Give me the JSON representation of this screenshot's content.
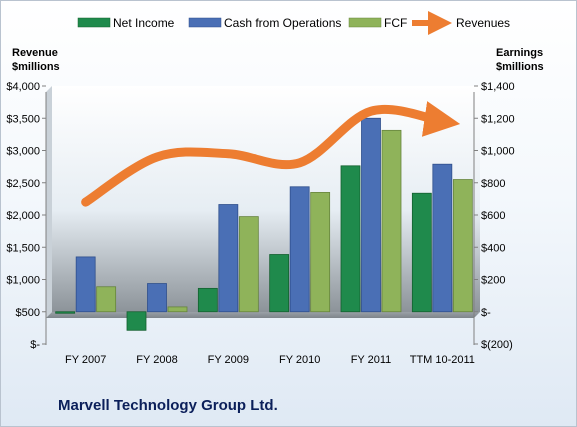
{
  "company_name": "Marvell Technology Group Ltd.",
  "chart_data": {
    "type": "bar",
    "categories": [
      "FY 2007",
      "FY 2008",
      "FY 2009",
      "FY 2010",
      "FY 2011",
      "TTM 10-2011"
    ],
    "series": [
      {
        "name": "Net Income",
        "axis": "right",
        "color": "#1f8a4c",
        "values": [
          -5,
          -115,
          145,
          355,
          905,
          735
        ]
      },
      {
        "name": "Cash from Operations",
        "axis": "right",
        "color": "#4a6fb5",
        "values": [
          340,
          175,
          665,
          775,
          1200,
          915
        ]
      },
      {
        "name": "FCF",
        "axis": "right",
        "color": "#8fb35a",
        "values": [
          155,
          30,
          590,
          740,
          1125,
          820
        ]
      },
      {
        "name": "Revenues",
        "axis": "left",
        "type": "line",
        "color": "#ed7d31",
        "values": [
          2200,
          2900,
          2950,
          2810,
          3610,
          3450
        ]
      }
    ],
    "left_axis": {
      "label_line1": "Revenue",
      "label_line2": "$millions",
      "ylim": [
        0,
        4000
      ],
      "ticks": [
        0,
        500,
        1000,
        1500,
        2000,
        2500,
        3000,
        3500,
        4000
      ],
      "tick_labels": [
        "$-",
        "$500",
        "$1,000",
        "$1,500",
        "$2,000",
        "$2,500",
        "$3,000",
        "$3,500",
        "$4,000"
      ]
    },
    "right_axis": {
      "label_line1": "Earnings",
      "label_line2": "$millions",
      "ylim": [
        -200,
        1400
      ],
      "ticks": [
        -200,
        0,
        200,
        400,
        600,
        800,
        1000,
        1200,
        1400
      ],
      "tick_labels": [
        "$(200)",
        "$-",
        "$200",
        "$400",
        "$600",
        "$800",
        "$1,000",
        "$1,200",
        "$1,400"
      ]
    },
    "legend_position": "top",
    "grid": false
  }
}
